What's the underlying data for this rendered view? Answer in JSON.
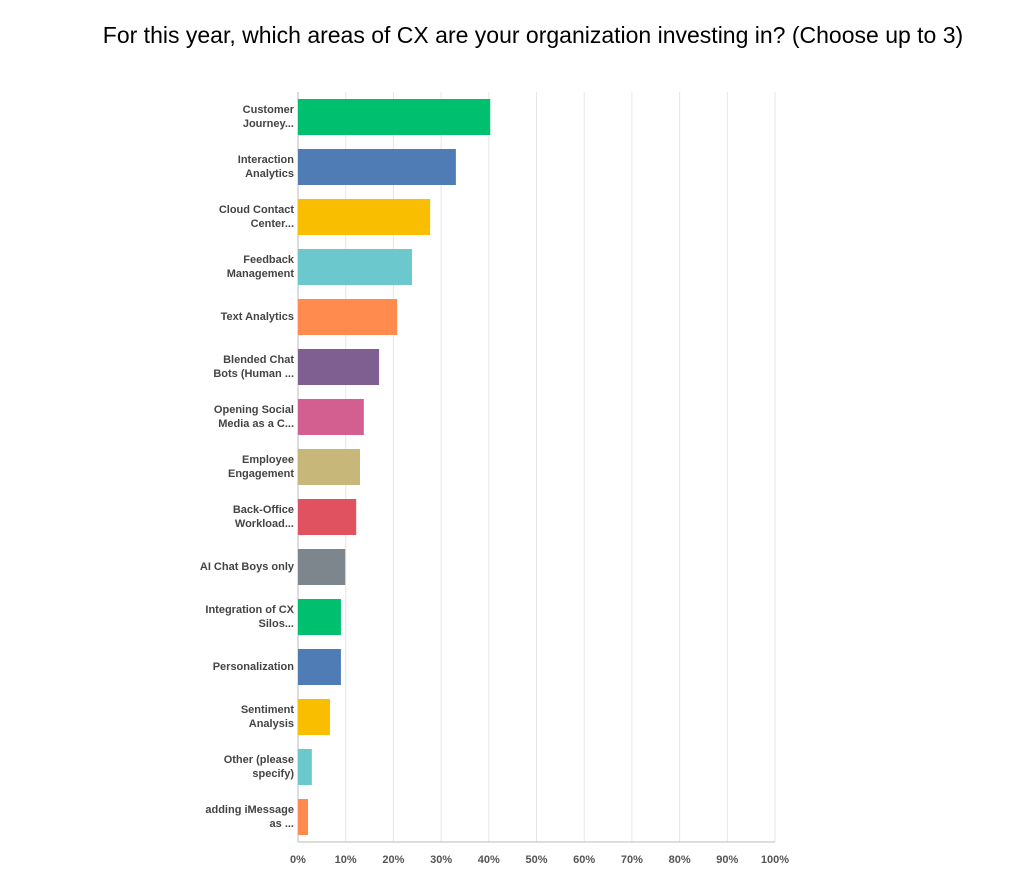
{
  "chart_data": {
    "type": "hbar",
    "title": "For this year, which areas of CX are your organization investing in? (Choose up to 3)",
    "categories": [
      "Customer Journey...",
      "Interaction Analytics",
      "Cloud Contact Center...",
      "Feedback Management",
      "Text Analytics",
      "Blended Chat Bots (Human ...",
      "Opening Social Media as a C...",
      "Employee Engagement",
      "Back-Office Workload...",
      "AI Chat Boys only",
      "Integration of CX Silos...",
      "Personalization",
      "Sentiment Analysis",
      "Other (please specify)",
      "adding iMessage as ..."
    ],
    "values": [
      40.3,
      33.1,
      27.7,
      23.9,
      20.8,
      17.0,
      13.8,
      13.0,
      12.2,
      9.9,
      9.0,
      9.0,
      6.7,
      2.9,
      2.1
    ],
    "colors": [
      "#00bf6f",
      "#507cb6",
      "#f9be00",
      "#6bc8cd",
      "#ff8b4f",
      "#7f5f91",
      "#d25f90",
      "#c7b879",
      "#e05260",
      "#7d868c",
      "#00bf6f",
      "#507cb6",
      "#f9be00",
      "#6bc8cd",
      "#ff8b4f"
    ],
    "xlim": [
      0,
      100
    ],
    "xticks": [
      {
        "value": 0,
        "label": "0%"
      },
      {
        "value": 10,
        "label": "10%"
      },
      {
        "value": 20,
        "label": "20%"
      },
      {
        "value": 30,
        "label": "30%"
      },
      {
        "value": 40,
        "label": "40%"
      },
      {
        "value": 50,
        "label": "50%"
      },
      {
        "value": 60,
        "label": "60%"
      },
      {
        "value": 70,
        "label": "70%"
      },
      {
        "value": 80,
        "label": "80%"
      },
      {
        "value": 90,
        "label": "90%"
      },
      {
        "value": 100,
        "label": "100%"
      }
    ],
    "grid": true
  }
}
